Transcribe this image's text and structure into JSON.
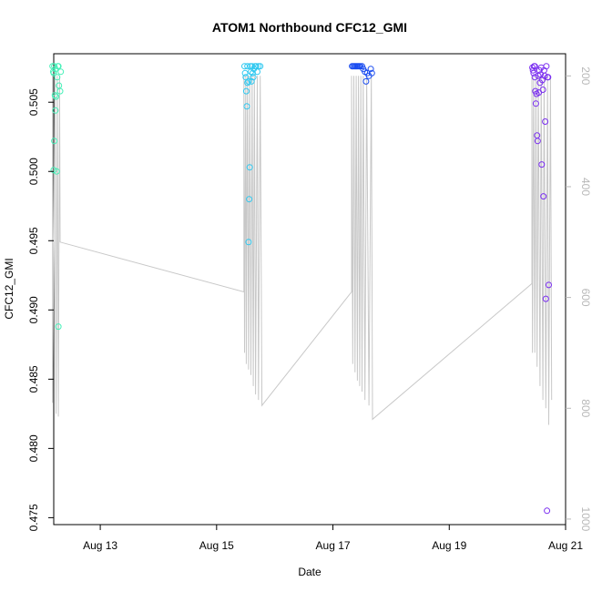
{
  "chart_data": {
    "type": "scatter",
    "title": "ATOM1 Northbound CFC12_GMI",
    "xlabel": "Date",
    "ylabel": "CFC12_GMI",
    "xlim_days": [
      12.2,
      21.0
    ],
    "ylim": [
      0.4745,
      0.5085
    ],
    "x_ticks": [
      {
        "value": 13,
        "label": "Aug 13"
      },
      {
        "value": 15,
        "label": "Aug 15"
      },
      {
        "value": 17,
        "label": "Aug 17"
      },
      {
        "value": 19,
        "label": "Aug 19"
      },
      {
        "value": 21,
        "label": "Aug 21"
      }
    ],
    "y_ticks": [
      0.475,
      0.48,
      0.485,
      0.49,
      0.495,
      0.5,
      0.505
    ],
    "secondary_axis": {
      "range": [
        1010,
        160
      ],
      "ticks": [
        200,
        400,
        600,
        800,
        1000
      ],
      "color": "#b8b8b8"
    },
    "grid": false,
    "colors": {
      "axis": "#000000",
      "secondary": "#b8b8b8",
      "altitude_line": "#c8c8c8"
    },
    "altitude_series": [
      {
        "name": "altitude",
        "points": [
          [
            12.18,
            200
          ],
          [
            12.18,
            790
          ],
          [
            12.22,
            200
          ],
          [
            12.24,
            810
          ],
          [
            12.26,
            200
          ],
          [
            12.28,
            815
          ],
          [
            12.3,
            200
          ],
          [
            12.31,
            500
          ],
          [
            15.47,
            590
          ],
          [
            15.47,
            200
          ],
          [
            15.48,
            700
          ],
          [
            15.5,
            200
          ],
          [
            15.51,
            720
          ],
          [
            15.53,
            200
          ],
          [
            15.55,
            730
          ],
          [
            15.57,
            200
          ],
          [
            15.59,
            740
          ],
          [
            15.61,
            200
          ],
          [
            15.63,
            760
          ],
          [
            15.65,
            200
          ],
          [
            15.67,
            775
          ],
          [
            15.7,
            200
          ],
          [
            15.72,
            785
          ],
          [
            15.75,
            200
          ],
          [
            15.78,
            795
          ],
          [
            17.32,
            590
          ],
          [
            17.32,
            200
          ],
          [
            17.34,
            720
          ],
          [
            17.36,
            200
          ],
          [
            17.38,
            735
          ],
          [
            17.4,
            200
          ],
          [
            17.42,
            750
          ],
          [
            17.44,
            200
          ],
          [
            17.46,
            760
          ],
          [
            17.48,
            200
          ],
          [
            17.5,
            770
          ],
          [
            17.52,
            200
          ],
          [
            17.55,
            785
          ],
          [
            17.58,
            200
          ],
          [
            17.62,
            795
          ],
          [
            17.66,
            200
          ],
          [
            17.68,
            820
          ],
          [
            20.42,
            575
          ],
          [
            20.42,
            200
          ],
          [
            20.43,
            700
          ],
          [
            20.45,
            200
          ],
          [
            20.47,
            700
          ],
          [
            20.49,
            200
          ],
          [
            20.51,
            725
          ],
          [
            20.53,
            200
          ],
          [
            20.56,
            760
          ],
          [
            20.58,
            200
          ],
          [
            20.61,
            785
          ],
          [
            20.63,
            200
          ],
          [
            20.66,
            800
          ],
          [
            20.69,
            200
          ],
          [
            20.71,
            830
          ],
          [
            20.74,
            200
          ],
          [
            20.76,
            785
          ]
        ]
      }
    ],
    "series": [
      {
        "color": "#46f0b8",
        "points": [
          [
            12.18,
            0.5076
          ],
          [
            12.19,
            0.5072
          ],
          [
            12.2,
            0.5071
          ],
          [
            12.21,
            0.5076
          ],
          [
            12.22,
            0.5055
          ],
          [
            12.23,
            0.5044
          ],
          [
            12.24,
            0.5054
          ],
          [
            12.26,
            0.5068
          ],
          [
            12.27,
            0.5076
          ],
          [
            12.28,
            0.5076
          ],
          [
            12.29,
            0.5062
          ],
          [
            12.31,
            0.5058
          ],
          [
            12.21,
            0.5022
          ],
          [
            12.2,
            0.5001
          ],
          [
            12.25,
            0.5
          ],
          [
            12.28,
            0.4888
          ],
          [
            12.32,
            0.5072
          ],
          [
            12.23,
            0.5074
          ]
        ]
      },
      {
        "color": "#2ec8f0",
        "points": [
          [
            15.48,
            0.5076
          ],
          [
            15.49,
            0.5071
          ],
          [
            15.5,
            0.5068
          ],
          [
            15.51,
            0.5058
          ],
          [
            15.52,
            0.5047
          ],
          [
            15.53,
            0.5076
          ],
          [
            15.55,
            0.5065
          ],
          [
            15.57,
            0.5003
          ],
          [
            15.58,
            0.5076
          ],
          [
            15.59,
            0.5072
          ],
          [
            15.6,
            0.5065
          ],
          [
            15.61,
            0.5076
          ],
          [
            15.62,
            0.5071
          ],
          [
            15.64,
            0.5074
          ],
          [
            15.66,
            0.5076
          ],
          [
            15.68,
            0.5076
          ],
          [
            15.7,
            0.5072
          ],
          [
            15.72,
            0.5076
          ],
          [
            15.75,
            0.5076
          ],
          [
            15.56,
            0.498
          ],
          [
            15.55,
            0.4949
          ],
          [
            15.53,
            0.5064
          ],
          [
            15.63,
            0.5068
          ]
        ]
      },
      {
        "color": "#1a4cf0",
        "points": [
          [
            17.33,
            0.5076
          ],
          [
            17.35,
            0.5076
          ],
          [
            17.37,
            0.5076
          ],
          [
            17.39,
            0.5076
          ],
          [
            17.41,
            0.5076
          ],
          [
            17.43,
            0.5076
          ],
          [
            17.45,
            0.5076
          ],
          [
            17.47,
            0.5076
          ],
          [
            17.5,
            0.5076
          ],
          [
            17.52,
            0.5074
          ],
          [
            17.55,
            0.5072
          ],
          [
            17.57,
            0.5065
          ],
          [
            17.59,
            0.5071
          ],
          [
            17.62,
            0.5069
          ],
          [
            17.65,
            0.5074
          ],
          [
            17.67,
            0.5071
          ]
        ]
      },
      {
        "color": "#7a2ef0",
        "points": [
          [
            20.43,
            0.5075
          ],
          [
            20.44,
            0.5073
          ],
          [
            20.45,
            0.5071
          ],
          [
            20.46,
            0.5076
          ],
          [
            20.47,
            0.5068
          ],
          [
            20.48,
            0.5058
          ],
          [
            20.49,
            0.5049
          ],
          [
            20.5,
            0.5056
          ],
          [
            20.51,
            0.5026
          ],
          [
            20.52,
            0.5022
          ],
          [
            20.53,
            0.5069
          ],
          [
            20.55,
            0.5073
          ],
          [
            20.56,
            0.5064
          ],
          [
            20.57,
            0.507
          ],
          [
            20.58,
            0.5075
          ],
          [
            20.59,
            0.5005
          ],
          [
            20.6,
            0.5066
          ],
          [
            20.61,
            0.5059
          ],
          [
            20.62,
            0.4982
          ],
          [
            20.63,
            0.5073
          ],
          [
            20.64,
            0.5069
          ],
          [
            20.65,
            0.5036
          ],
          [
            20.66,
            0.4908
          ],
          [
            20.67,
            0.5076
          ],
          [
            20.69,
            0.5068
          ],
          [
            20.7,
            0.5068
          ],
          [
            20.71,
            0.4918
          ],
          [
            20.68,
            0.4755
          ],
          [
            20.54,
            0.5057
          ],
          [
            20.47,
            0.5076
          ]
        ]
      }
    ]
  }
}
